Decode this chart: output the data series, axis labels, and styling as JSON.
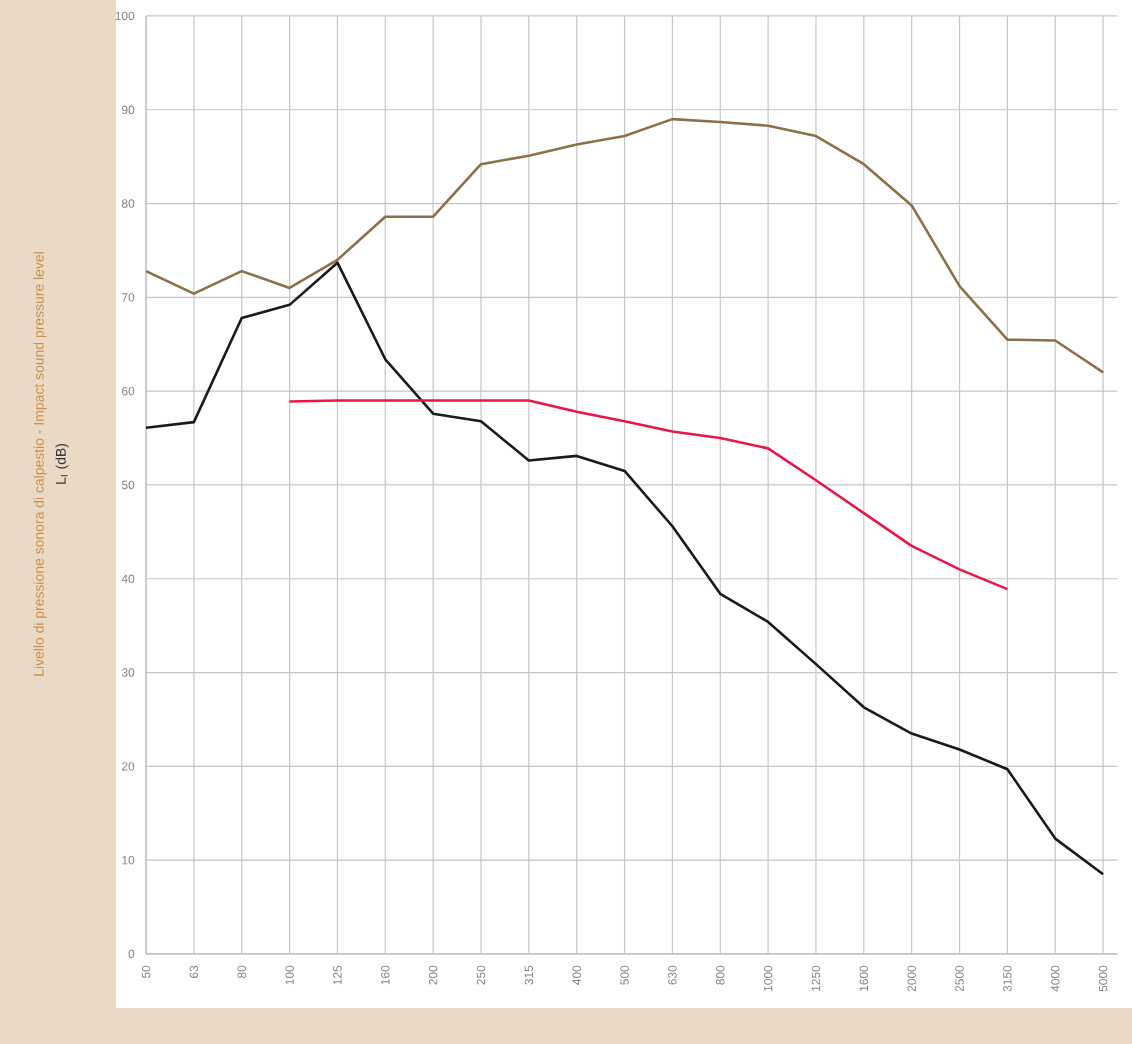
{
  "chart_data": {
    "type": "line",
    "ylabel": "Livello di pressione sonora di calpestio - Impact sound pressure level",
    "annotations": [
      "L$_{I}$ (dB)"
    ],
    "categories": [
      "50",
      "63",
      "80",
      "100",
      "125",
      "160",
      "200",
      "250",
      "315",
      "400",
      "500",
      "630",
      "800",
      "1000",
      "1250",
      "1600",
      "2000",
      "2500",
      "3150",
      "4000",
      "5000"
    ],
    "series": [
      {
        "color": "#8c7048",
        "values": [
          72.8,
          70.4,
          72.8,
          71,
          74,
          78.6,
          78.6,
          84.2,
          85.1,
          86.3,
          87.2,
          89,
          88.7,
          88.3,
          87.2,
          84.2,
          79.8,
          71.2,
          65.5,
          65.4,
          62
        ]
      },
      {
        "color": "#1a1a1a",
        "values": [
          56.1,
          56.7,
          67.8,
          69.2,
          73.7,
          63.4,
          57.6,
          56.8,
          52.6,
          53.1,
          51.5,
          45.6,
          38.4,
          35.4,
          30.9,
          26.3,
          23.5,
          21.8,
          19.7,
          12.3,
          8.5
        ]
      },
      {
        "color": "#e8174a",
        "values": [
          null,
          null,
          null,
          58.9,
          59,
          59,
          59,
          59,
          59,
          57.8,
          56.8,
          55.7,
          55,
          53.9,
          50.5,
          47,
          43.5,
          41,
          38.9,
          null,
          null
        ]
      }
    ],
    "ylim": [
      0,
      100
    ],
    "yticks": [
      0,
      10,
      20,
      30,
      40,
      50,
      60,
      70,
      80,
      90,
      100
    ],
    "grid": true,
    "marker": "none",
    "line_style": "solid"
  }
}
